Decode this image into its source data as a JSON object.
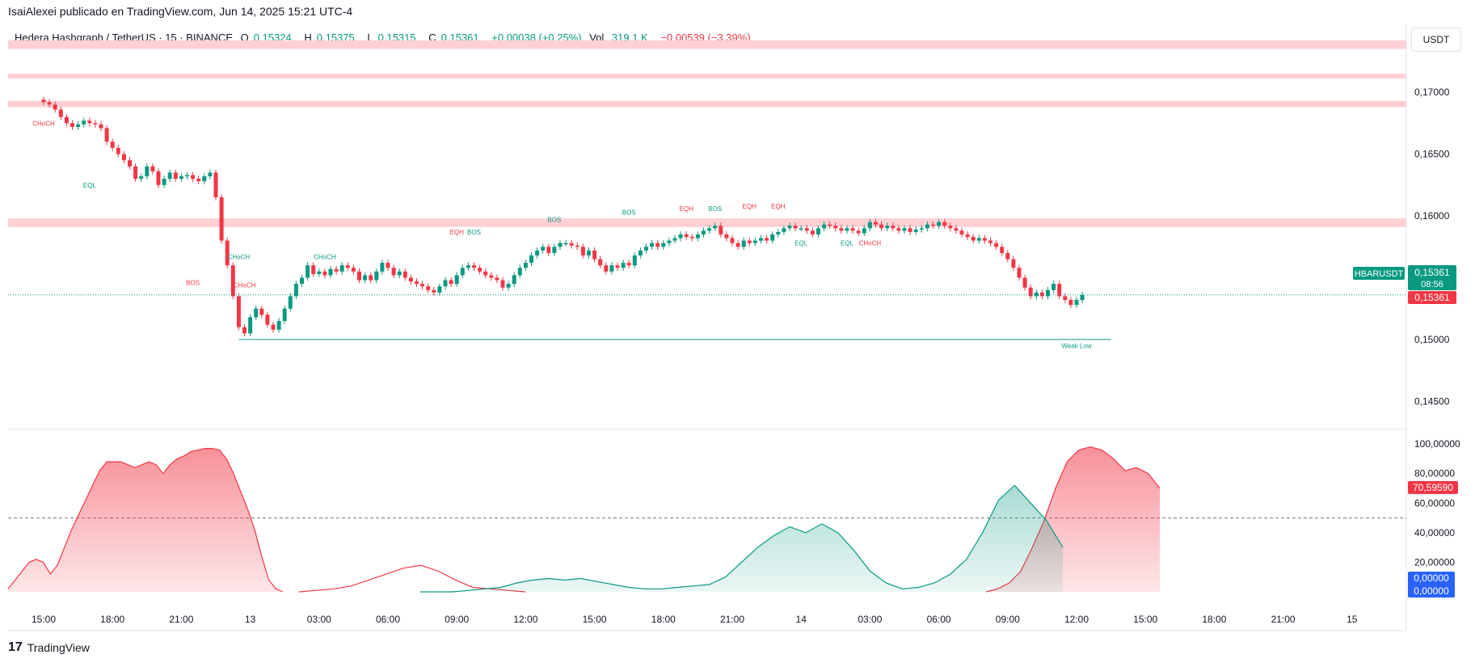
{
  "publisher": "IsaiAlexei publicado en TradingView.com, Jun 14, 2025 15:21 UTC-4",
  "legend": {
    "symbol": "Hedera Hashgraph / TetherUS · 15 · BINANCE",
    "o_label": "O",
    "o_value": "0,15324",
    "h_label": "H",
    "h_value": "0,15375",
    "l_label": "L",
    "l_value": "0,15315",
    "c_label": "C",
    "c_value": "0,15361",
    "change": "+0,00038 (+0,25%)",
    "vol_label": "Vol.",
    "vol_value": "319,1 K",
    "change2": "−0,00539 (−3,39%)"
  },
  "unit_button": "USDT",
  "footer": {
    "brand": "TradingView",
    "logo": "17"
  },
  "chart_data": [
    {
      "type": "candlestick",
      "symbol_tag": "HBARUSDT",
      "last_price_label": "0,15361",
      "countdown": "08:56",
      "last_price_label2": "0,15361",
      "last_price": 0.15361,
      "y_ticks": [
        "0,17000",
        "0,16500",
        "0,16000",
        "0,15000",
        "0,14500"
      ],
      "y_tick_values": [
        0.17,
        0.165,
        0.16,
        0.15,
        0.145
      ],
      "ylim": [
        0.1428,
        0.1755
      ],
      "x_ticks": [
        "15:00",
        "18:00",
        "21:00",
        "13",
        "03:00",
        "06:00",
        "09:00",
        "12:00",
        "15:00",
        "18:00",
        "21:00",
        "14",
        "03:00",
        "06:00",
        "09:00",
        "12:00",
        "15:00",
        "18:00",
        "21:00",
        "15"
      ],
      "x_tick_index": [
        0,
        12,
        24,
        36,
        48,
        60,
        72,
        84,
        96,
        108,
        120,
        132,
        144,
        156,
        168,
        180,
        192,
        204,
        216,
        228
      ],
      "closes": [
        0.1692,
        0.169,
        0.1686,
        0.168,
        0.1675,
        0.1672,
        0.1674,
        0.1677,
        0.1675,
        0.1674,
        0.1671,
        0.166,
        0.1655,
        0.165,
        0.1645,
        0.164,
        0.163,
        0.1632,
        0.164,
        0.1636,
        0.1625,
        0.163,
        0.1635,
        0.163,
        0.1632,
        0.1633,
        0.163,
        0.1628,
        0.1632,
        0.1635,
        0.1615,
        0.158,
        0.156,
        0.1535,
        0.151,
        0.1505,
        0.1518,
        0.1525,
        0.152,
        0.1512,
        0.1508,
        0.1515,
        0.1525,
        0.1535,
        0.1545,
        0.155,
        0.156,
        0.1553,
        0.1555,
        0.1552,
        0.1557,
        0.1555,
        0.156,
        0.1558,
        0.1555,
        0.1548,
        0.1552,
        0.1548,
        0.1555,
        0.1562,
        0.1558,
        0.1552,
        0.1555,
        0.155,
        0.1547,
        0.1545,
        0.1543,
        0.154,
        0.1538,
        0.1543,
        0.1548,
        0.1545,
        0.1552,
        0.1558,
        0.156,
        0.1558,
        0.1555,
        0.1552,
        0.155,
        0.1548,
        0.1542,
        0.1545,
        0.1552,
        0.1558,
        0.1562,
        0.1568,
        0.1572,
        0.1575,
        0.157,
        0.1575,
        0.1578,
        0.1578,
        0.1576,
        0.1575,
        0.1568,
        0.1572,
        0.1565,
        0.156,
        0.1555,
        0.156,
        0.1558,
        0.1562,
        0.156,
        0.1568,
        0.1572,
        0.1575,
        0.1578,
        0.1575,
        0.1578,
        0.158,
        0.1582,
        0.1585,
        0.1583,
        0.1582,
        0.1585,
        0.1588,
        0.159,
        0.1592,
        0.1585,
        0.1582,
        0.1578,
        0.1575,
        0.158,
        0.1578,
        0.158,
        0.1582,
        0.158,
        0.1585,
        0.1587,
        0.159,
        0.1592,
        0.159,
        0.159,
        0.1588,
        0.1585,
        0.159,
        0.1593,
        0.1592,
        0.159,
        0.1588,
        0.159,
        0.1588,
        0.1586,
        0.159,
        0.1595,
        0.1593,
        0.159,
        0.1592,
        0.159,
        0.1588,
        0.159,
        0.1587,
        0.1589,
        0.159,
        0.1593,
        0.1592,
        0.1595,
        0.1592,
        0.159,
        0.1588,
        0.1585,
        0.1583,
        0.158,
        0.1582,
        0.158,
        0.1578,
        0.1575,
        0.157,
        0.1565,
        0.1558,
        0.155,
        0.1542,
        0.1535,
        0.1538,
        0.1535,
        0.154,
        0.1545,
        0.1535,
        0.1532,
        0.1528,
        0.1532,
        0.1536
      ],
      "annotations": [
        {
          "text": "CHoCH",
          "color": "#f23645",
          "index": 0,
          "price": 0.1673
        },
        {
          "text": "EQL",
          "color": "#089981",
          "index": 8,
          "price": 0.1623
        },
        {
          "text": "CHoCH",
          "color": "#089981",
          "index": 34,
          "price": 0.1565
        },
        {
          "text": "BOS",
          "color": "#f23645",
          "index": 26,
          "price": 0.1544
        },
        {
          "text": "CHoCH",
          "color": "#f23645",
          "index": 35,
          "price": 0.1542
        },
        {
          "text": "CHoCH",
          "color": "#089981",
          "index": 49,
          "price": 0.1565
        },
        {
          "text": "EQH",
          "color": "#f23645",
          "index": 72,
          "price": 0.1585
        },
        {
          "text": "BOS",
          "color": "#089981",
          "index": 75,
          "price": 0.1585
        },
        {
          "text": "BOS",
          "color": "#089981",
          "index": 89,
          "price": 0.1595
        },
        {
          "text": "BOS",
          "color": "#089981",
          "index": 102,
          "price": 0.1601
        },
        {
          "text": "EQH",
          "color": "#f23645",
          "index": 112,
          "price": 0.1604
        },
        {
          "text": "BOS",
          "color": "#089981",
          "index": 117,
          "price": 0.1604
        },
        {
          "text": "EQH",
          "color": "#f23645",
          "index": 123,
          "price": 0.1606
        },
        {
          "text": "EQH",
          "color": "#f23645",
          "index": 128,
          "price": 0.1606
        },
        {
          "text": "EQL",
          "color": "#089981",
          "index": 132,
          "price": 0.1576
        },
        {
          "text": "EQL",
          "color": "#089981",
          "index": 140,
          "price": 0.1576
        },
        {
          "text": "CHoCH",
          "color": "#f23645",
          "index": 144,
          "price": 0.1576
        },
        {
          "text": "Weak Low",
          "color": "#089981",
          "index": 180,
          "price": 0.1493
        }
      ],
      "weak_low_price": 0.15,
      "zones": [
        {
          "from": 0.1742,
          "to": 0.1735
        },
        {
          "from": 0.1715,
          "to": 0.1711
        },
        {
          "from": 0.1693,
          "to": 0.1688
        },
        {
          "from": 0.1598,
          "to": 0.1591
        }
      ],
      "colors": {
        "up": "#089981",
        "down": "#f23645",
        "zone": "#ffd0d4",
        "price_line": "#089981"
      }
    },
    {
      "type": "area",
      "value_label": "70,59590",
      "zero_label_1": "0,00000",
      "zero_label_2": "0,00000",
      "y_ticks": [
        "100,00000",
        "80,00000",
        "60,00000",
        "40,00000",
        "20,00000"
      ],
      "y_tick_values": [
        100,
        80,
        60,
        40,
        20
      ],
      "ylim": [
        0,
        105
      ],
      "midline": 50,
      "red_series": [
        2,
        8,
        14,
        20,
        22,
        20,
        12,
        18,
        30,
        42,
        52,
        62,
        72,
        82,
        88,
        88,
        88,
        86,
        84,
        86,
        88,
        86,
        80,
        86,
        90,
        92,
        95,
        96,
        97,
        97,
        96,
        90,
        80,
        68,
        56,
        42,
        24,
        8,
        2,
        0
      ],
      "green_series": [
        0,
        0,
        0,
        1,
        2,
        3,
        6,
        8,
        9,
        8,
        9,
        7,
        5,
        3,
        2,
        2,
        3,
        4,
        5,
        10,
        20,
        30,
        38,
        44,
        40,
        46,
        40,
        28,
        14,
        6,
        2,
        3,
        6,
        12,
        22,
        40,
        62,
        72,
        60,
        48,
        30
      ],
      "colors": {
        "red": "#f23645",
        "green": "#089981"
      }
    }
  ]
}
